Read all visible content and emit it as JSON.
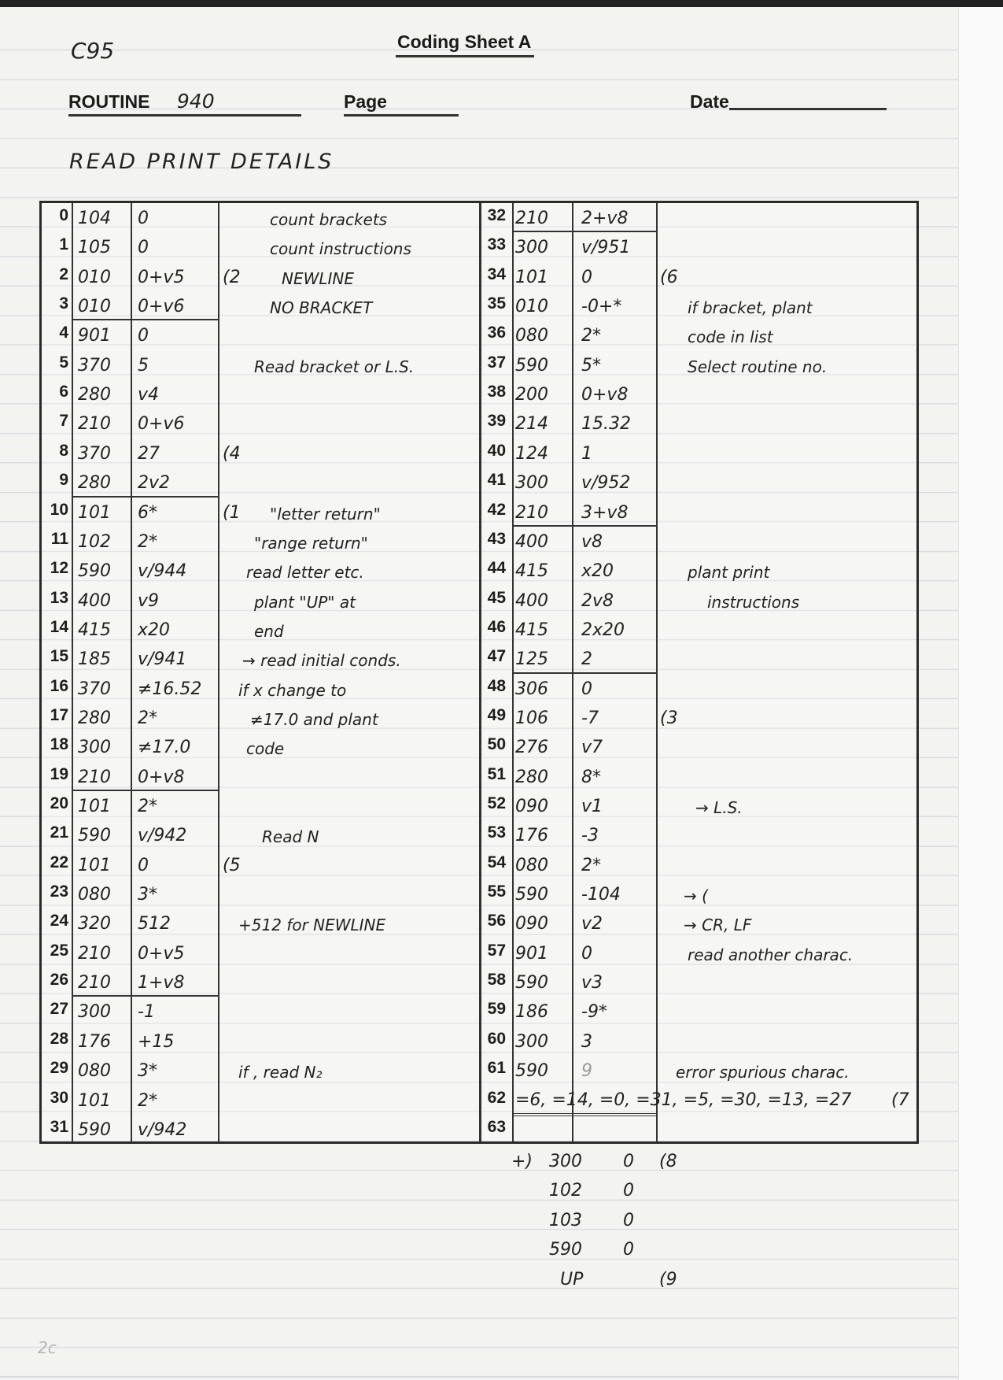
{
  "header": {
    "sheet_ref": "C95",
    "title": "Coding Sheet A",
    "routine_label": "ROUTINE",
    "routine_value": "940",
    "page_label": "Page",
    "page_value": "",
    "date_label": "Date",
    "date_value": "",
    "description": "READ PRINT DETAILS"
  },
  "rows": [
    {
      "n": "0",
      "a": "104",
      "b": "0",
      "label": "",
      "comment": "count brackets"
    },
    {
      "n": "1",
      "a": "105",
      "b": "0",
      "label": "",
      "comment": "count instructions"
    },
    {
      "n": "2",
      "a": "010",
      "b": "0+v5",
      "label": "(2",
      "comment": "NEWLINE"
    },
    {
      "n": "3",
      "a": "010",
      "b": "0+v6",
      "label": "",
      "comment": "NO BRACKET"
    },
    {
      "n": "4",
      "a": "901",
      "b": "0",
      "label": "",
      "comment": ""
    },
    {
      "n": "5",
      "a": "370",
      "b": "5",
      "label": "",
      "comment": "Read bracket or L.S."
    },
    {
      "n": "6",
      "a": "280",
      "b": "v4",
      "label": "",
      "comment": ""
    },
    {
      "n": "7",
      "a": "210",
      "b": "0+v6",
      "label": "",
      "comment": ""
    },
    {
      "n": "8",
      "a": "370",
      "b": "27",
      "label": "(4",
      "comment": ""
    },
    {
      "n": "9",
      "a": "280",
      "b": "2v2",
      "label": "",
      "comment": ""
    },
    {
      "n": "10",
      "a": "101",
      "b": "6*",
      "label": "(1",
      "comment": "\"letter return\""
    },
    {
      "n": "11",
      "a": "102",
      "b": "2*",
      "label": "",
      "comment": "\"range return\""
    },
    {
      "n": "12",
      "a": "590",
      "b": "v/944",
      "label": "",
      "comment": "read letter etc."
    },
    {
      "n": "13",
      "a": "400",
      "b": "v9",
      "label": "",
      "comment": "plant \"UP\" at"
    },
    {
      "n": "14",
      "a": "415",
      "b": "x20",
      "label": "",
      "comment": "end"
    },
    {
      "n": "15",
      "a": "185",
      "b": "v/941",
      "label": "",
      "comment": "→ read initial conds."
    },
    {
      "n": "16",
      "a": "370",
      "b": "≠16.52",
      "label": "",
      "comment": "if x change to"
    },
    {
      "n": "17",
      "a": "280",
      "b": "2*",
      "label": "",
      "comment": "≠17.0 and plant"
    },
    {
      "n": "18",
      "a": "300",
      "b": "≠17.0",
      "label": "",
      "comment": "code"
    },
    {
      "n": "19",
      "a": "210",
      "b": "0+v8",
      "label": "",
      "comment": ""
    },
    {
      "n": "20",
      "a": "101",
      "b": "2*",
      "label": "",
      "comment": ""
    },
    {
      "n": "21",
      "a": "590",
      "b": "v/942",
      "label": "",
      "comment": "Read N"
    },
    {
      "n": "22",
      "a": "101",
      "b": "0",
      "label": "(5",
      "comment": ""
    },
    {
      "n": "23",
      "a": "080",
      "b": "3*",
      "label": "",
      "comment": ""
    },
    {
      "n": "24",
      "a": "320",
      "b": "512",
      "label": "",
      "comment": "+512 for NEWLINE"
    },
    {
      "n": "25",
      "a": "210",
      "b": "0+v5",
      "label": "",
      "comment": ""
    },
    {
      "n": "26",
      "a": "210",
      "b": "1+v8",
      "label": "",
      "comment": ""
    },
    {
      "n": "27",
      "a": "300",
      "b": "-1",
      "label": "",
      "comment": ""
    },
    {
      "n": "28",
      "a": "176",
      "b": "+15",
      "label": "",
      "comment": ""
    },
    {
      "n": "29",
      "a": "080",
      "b": "3*",
      "label": "",
      "comment": "if , read N₂"
    },
    {
      "n": "30",
      "a": "101",
      "b": "2*",
      "label": "",
      "comment": ""
    },
    {
      "n": "31",
      "a": "590",
      "b": "v/942",
      "label": "",
      "comment": ""
    },
    {
      "n": "32",
      "a": "210",
      "b": "2+v8",
      "label": "",
      "comment": ""
    },
    {
      "n": "33",
      "a": "300",
      "b": "v/951",
      "label": "",
      "comment": ""
    },
    {
      "n": "34",
      "a": "101",
      "b": "0",
      "label": "(6",
      "comment": ""
    },
    {
      "n": "35",
      "a": "010",
      "b": "-0+*",
      "label": "",
      "comment": "if bracket, plant"
    },
    {
      "n": "36",
      "a": "080",
      "b": "2*",
      "label": "",
      "comment": "code in list"
    },
    {
      "n": "37",
      "a": "590",
      "b": "5*",
      "label": "",
      "comment": "Select routine no."
    },
    {
      "n": "38",
      "a": "200",
      "b": "0+v8",
      "label": "",
      "comment": ""
    },
    {
      "n": "39",
      "a": "214",
      "b": "15.32",
      "label": "",
      "comment": ""
    },
    {
      "n": "40",
      "a": "124",
      "b": "1",
      "label": "",
      "comment": ""
    },
    {
      "n": "41",
      "a": "300",
      "b": "v/952",
      "label": "",
      "comment": ""
    },
    {
      "n": "42",
      "a": "210",
      "b": "3+v8",
      "label": "",
      "comment": ""
    },
    {
      "n": "43",
      "a": "400",
      "b": "v8",
      "label": "",
      "comment": ""
    },
    {
      "n": "44",
      "a": "415",
      "b": "x20",
      "label": "",
      "comment": "plant print"
    },
    {
      "n": "45",
      "a": "400",
      "b": "2v8",
      "label": "",
      "comment": "instructions"
    },
    {
      "n": "46",
      "a": "415",
      "b": "2x20",
      "label": "",
      "comment": ""
    },
    {
      "n": "47",
      "a": "125",
      "b": "2",
      "label": "",
      "comment": ""
    },
    {
      "n": "48",
      "a": "306",
      "b": "0",
      "label": "",
      "comment": ""
    },
    {
      "n": "49",
      "a": "106",
      "b": "-7",
      "label": "(3",
      "comment": ""
    },
    {
      "n": "50",
      "a": "276",
      "b": "v7",
      "label": "",
      "comment": ""
    },
    {
      "n": "51",
      "a": "280",
      "b": "8*",
      "label": "",
      "comment": ""
    },
    {
      "n": "52",
      "a": "090",
      "b": "v1",
      "label": "",
      "comment": "→ L.S."
    },
    {
      "n": "53",
      "a": "176",
      "b": "-3",
      "label": "",
      "comment": ""
    },
    {
      "n": "54",
      "a": "080",
      "b": "2*",
      "label": "",
      "comment": ""
    },
    {
      "n": "55",
      "a": "590",
      "b": "-104",
      "label": "",
      "comment": "→ ("
    },
    {
      "n": "56",
      "a": "090",
      "b": "v2",
      "label": "",
      "comment": "→ CR, LF"
    },
    {
      "n": "57",
      "a": "901",
      "b": "0",
      "label": "",
      "comment": "read another charac."
    },
    {
      "n": "58",
      "a": "590",
      "b": "v3",
      "label": "",
      "comment": ""
    },
    {
      "n": "59",
      "a": "186",
      "b": "-9*",
      "label": "",
      "comment": ""
    },
    {
      "n": "60",
      "a": "300",
      "b": "3",
      "label": "",
      "comment": ""
    },
    {
      "n": "61",
      "a": "590",
      "b": "9",
      "label": "",
      "comment": "error spurious charac."
    },
    {
      "n": "62",
      "span": "=6, =14, =0, =31, =5, =30, =13, =27",
      "label": "(7",
      "comment": ""
    },
    {
      "n": "63",
      "a": "",
      "b": "",
      "label": "",
      "comment": ""
    }
  ],
  "appendix": [
    {
      "prefix": "+)",
      "a": "300",
      "b": "0",
      "label": "(8"
    },
    {
      "prefix": "",
      "a": "102",
      "b": "0",
      "label": ""
    },
    {
      "prefix": "",
      "a": "103",
      "b": "0",
      "label": ""
    },
    {
      "prefix": "",
      "a": "590",
      "b": "0",
      "label": ""
    },
    {
      "prefix": "",
      "a": "UP",
      "b": "",
      "label": "(9"
    }
  ],
  "page_mark": "2c",
  "colors": {
    "paper": "#f3f3f1",
    "ink": "#222222",
    "rule": "#d9dde0"
  }
}
